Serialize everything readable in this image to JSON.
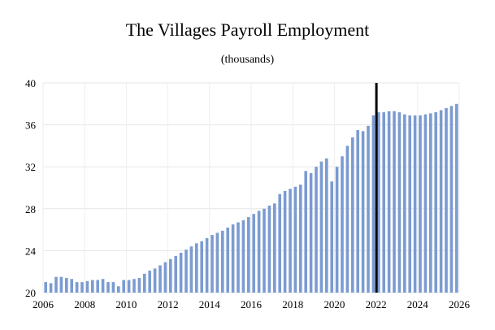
{
  "chart_data": {
    "type": "bar",
    "title": "The Villages Payroll Employment",
    "subtitle": "(thousands)",
    "xlabel": "",
    "ylabel": "",
    "ylim": [
      20,
      40
    ],
    "y_ticks": [
      "20",
      "24",
      "28",
      "32",
      "36",
      "40"
    ],
    "x_ticks": [
      "2006",
      "2008",
      "2010",
      "2012",
      "2014",
      "2016",
      "2018",
      "2020",
      "2022",
      "2024",
      "2026"
    ],
    "x_range": [
      2006,
      2026
    ],
    "grid": true,
    "legend": "none",
    "bar_color": "#7b9bd1",
    "forecast_marker": {
      "x": 2022.0,
      "color": "#000000"
    },
    "series": [
      {
        "x": [
          2006.25,
          2006.5,
          2006.75,
          2007.0,
          2007.25,
          2007.5,
          2007.75,
          2008.0,
          2008.25,
          2008.5,
          2008.75,
          2009.0,
          2009.25,
          2009.5,
          2009.75,
          2010.0,
          2010.25,
          2010.5,
          2010.75,
          2011.0,
          2011.25,
          2011.5,
          2011.75,
          2012.0,
          2012.25,
          2012.5,
          2012.75,
          2013.0,
          2013.25,
          2013.5,
          2013.75,
          2014.0,
          2014.25,
          2014.5,
          2014.75,
          2015.0,
          2015.25,
          2015.5,
          2015.75,
          2016.0,
          2016.25,
          2016.5,
          2016.75,
          2017.0,
          2017.25,
          2017.5,
          2017.75,
          2018.0,
          2018.25,
          2018.5,
          2018.75,
          2019.0,
          2019.25,
          2019.5,
          2019.75,
          2020.0,
          2020.25,
          2020.5,
          2020.75,
          2021.0,
          2021.25,
          2021.5,
          2021.75,
          2022.0,
          2022.25,
          2022.5,
          2022.75,
          2023.0,
          2023.25,
          2023.5,
          2023.75,
          2024.0,
          2024.25,
          2024.5,
          2024.75,
          2025.0,
          2025.25,
          2025.5,
          2025.75,
          2026.0
        ],
        "values": [
          21.0,
          20.9,
          21.5,
          21.5,
          21.4,
          21.3,
          21.0,
          21.0,
          21.1,
          21.2,
          21.2,
          21.3,
          21.0,
          21.0,
          20.6,
          21.2,
          21.2,
          21.3,
          21.4,
          21.8,
          22.1,
          22.3,
          22.6,
          22.9,
          23.2,
          23.5,
          23.8,
          24.1,
          24.4,
          24.7,
          24.9,
          25.2,
          25.5,
          25.7,
          25.9,
          26.2,
          26.5,
          26.7,
          26.9,
          27.2,
          27.5,
          27.8,
          28.0,
          28.3,
          28.5,
          29.4,
          29.7,
          29.9,
          30.1,
          30.3,
          31.6,
          31.4,
          32.0,
          32.5,
          32.8,
          30.6,
          32.0,
          33.0,
          34.0,
          34.8,
          35.5,
          35.4,
          35.9,
          36.9,
          37.2,
          37.2,
          37.3,
          37.3,
          37.2,
          37.0,
          36.9,
          36.9,
          36.9,
          37.0,
          37.1,
          37.2,
          37.4,
          37.6,
          37.8,
          38.0
        ]
      }
    ]
  }
}
